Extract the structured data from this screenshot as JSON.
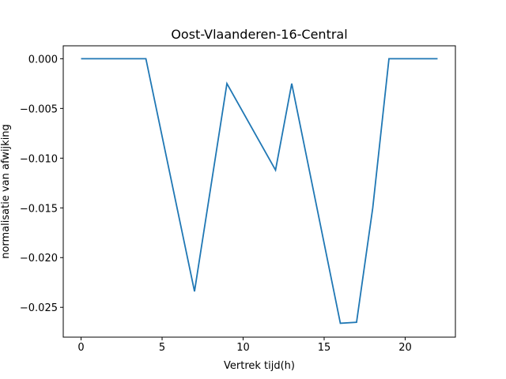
{
  "chart_data": {
    "type": "line",
    "title": "Oost-Vlaanderen-16-Central",
    "xlabel": "Vertrek tijd(h)",
    "ylabel": "normalisatie van afwijking",
    "xlim": [
      -1.1,
      23.1
    ],
    "ylim": [
      -0.028,
      0.0013
    ],
    "x_ticks": [
      {
        "value": 0,
        "label": "0"
      },
      {
        "value": 5,
        "label": "5"
      },
      {
        "value": 10,
        "label": "10"
      },
      {
        "value": 15,
        "label": "15"
      },
      {
        "value": 20,
        "label": "20"
      }
    ],
    "y_ticks": [
      {
        "value": 0.0,
        "label": "0.000"
      },
      {
        "value": -0.005,
        "label": "−0.005"
      },
      {
        "value": -0.01,
        "label": "−0.010"
      },
      {
        "value": -0.015,
        "label": "−0.015"
      },
      {
        "value": -0.02,
        "label": "−0.020"
      },
      {
        "value": -0.025,
        "label": "−0.025"
      }
    ],
    "grid": false,
    "series": [
      {
        "color": "#1f77b4",
        "x": [
          0,
          1,
          2,
          3,
          4,
          7,
          9,
          12,
          13,
          16,
          17,
          18,
          19,
          20,
          21,
          22
        ],
        "y": [
          0.0,
          0.0,
          0.0,
          0.0,
          0.0,
          -0.0234,
          -0.0025,
          -0.0112,
          -0.0025,
          -0.0266,
          -0.0265,
          -0.015,
          0.0,
          0.0,
          0.0,
          0.0
        ]
      }
    ]
  }
}
